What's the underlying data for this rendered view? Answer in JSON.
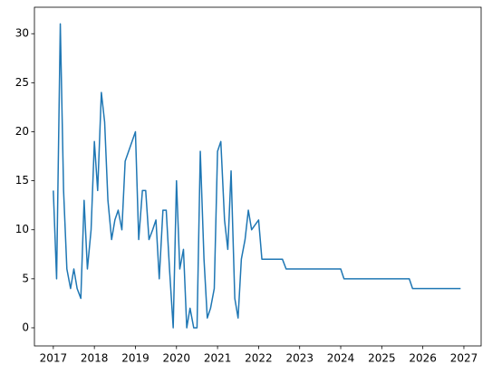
{
  "chart_data": {
    "type": "line",
    "color": "#1f77b4",
    "x": [
      2017.0,
      2017.08,
      2017.17,
      2017.25,
      2017.33,
      2017.42,
      2017.5,
      2017.58,
      2017.67,
      2017.75,
      2017.83,
      2017.92,
      2018.0,
      2018.08,
      2018.17,
      2018.25,
      2018.33,
      2018.42,
      2018.5,
      2018.58,
      2018.67,
      2018.75,
      2019.0,
      2019.08,
      2019.17,
      2019.25,
      2019.33,
      2019.42,
      2019.5,
      2019.58,
      2019.67,
      2019.75,
      2019.83,
      2019.92,
      2020.0,
      2020.08,
      2020.17,
      2020.25,
      2020.33,
      2020.42,
      2020.5,
      2020.58,
      2020.67,
      2020.75,
      2020.83,
      2020.92,
      2021.0,
      2021.08,
      2021.17,
      2021.25,
      2021.33,
      2021.42,
      2021.5,
      2021.58,
      2021.67,
      2021.75,
      2021.83,
      2022.0,
      2022.08,
      2022.58,
      2022.67,
      2024.0,
      2024.08,
      2025.67,
      2025.75,
      2026.92
    ],
    "values": [
      14,
      5,
      31,
      14,
      6,
      4,
      6,
      4,
      3,
      13,
      6,
      10,
      19,
      14,
      24,
      21,
      13,
      9,
      11,
      12,
      10,
      17,
      20,
      9,
      14,
      14,
      9,
      10,
      11,
      5,
      12,
      12,
      6,
      0,
      15,
      6,
      8,
      0,
      2,
      0,
      0,
      18,
      7,
      1,
      2,
      4,
      18,
      19,
      11,
      8,
      16,
      3,
      1,
      7,
      9,
      12,
      10,
      11,
      7,
      7,
      6,
      6,
      5,
      5,
      4,
      4
    ],
    "xlim": [
      2016.54,
      2027.42
    ],
    "ylim": [
      -1.85,
      32.7
    ],
    "xticks": [
      2017,
      2018,
      2019,
      2020,
      2021,
      2022,
      2023,
      2024,
      2025,
      2026,
      2027
    ],
    "yticks": [
      0,
      5,
      10,
      15,
      20,
      25,
      30
    ],
    "grid": false
  }
}
